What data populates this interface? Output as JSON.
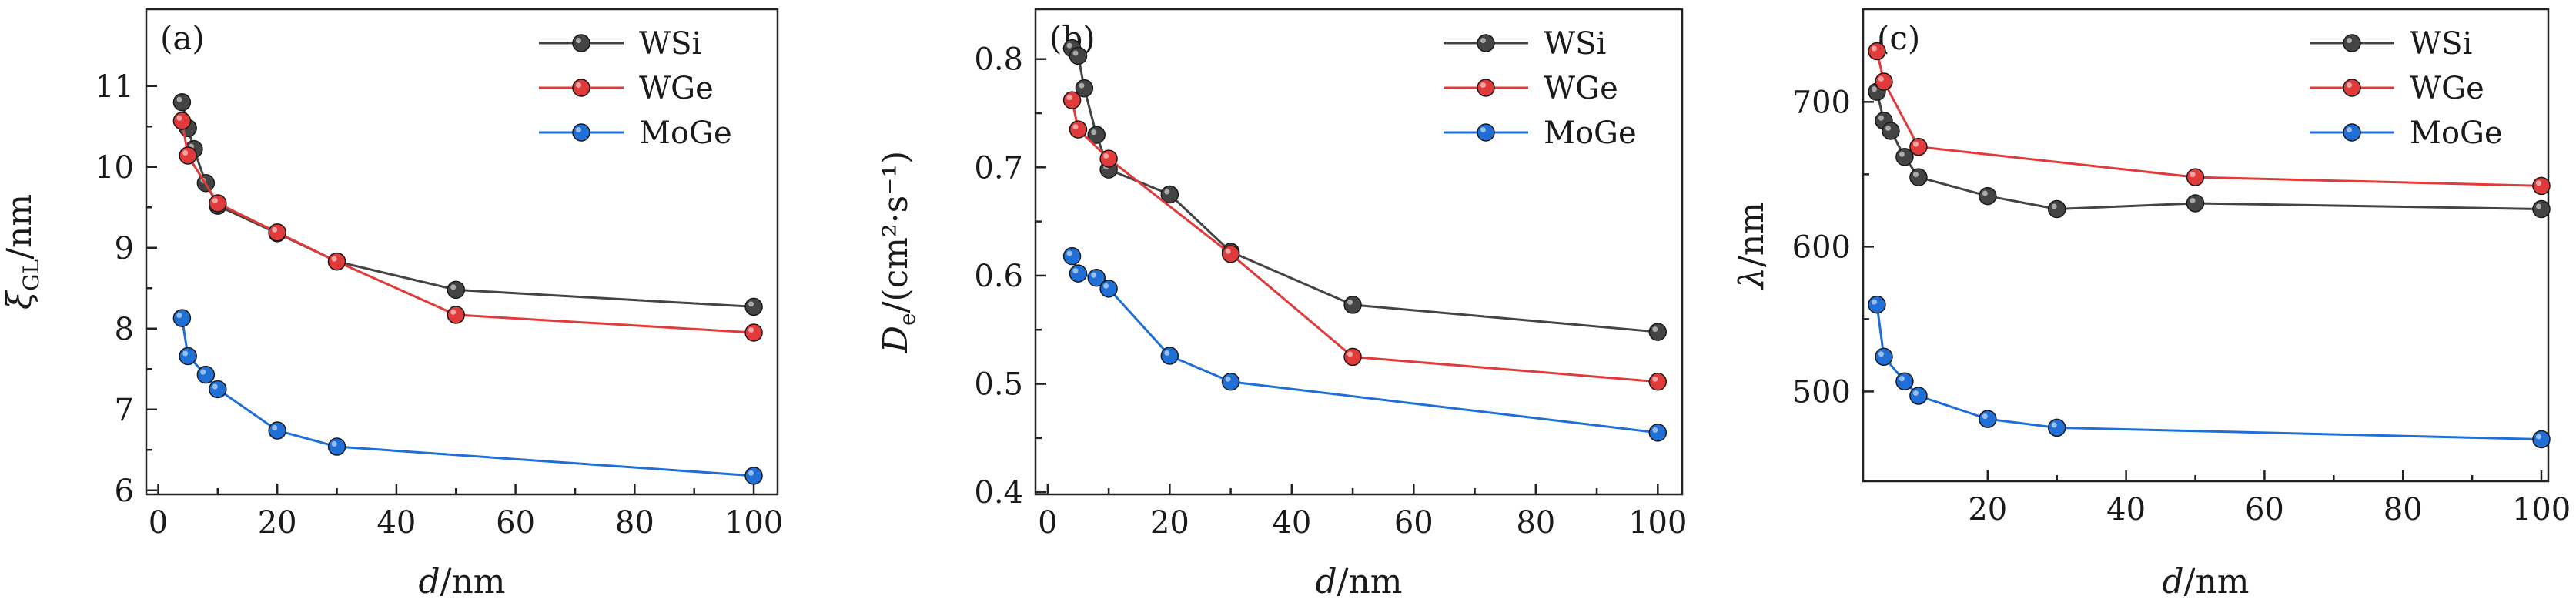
{
  "figure": {
    "colors": {
      "WSi": "#444444",
      "WGe": "#e03a3a",
      "MoGe": "#1f6fd6"
    },
    "icon": "marker-circle-icon"
  },
  "chart_data": [
    {
      "type": "line",
      "panel_label": "(a)",
      "xlabel_var": "d",
      "xlabel_unit": "/nm",
      "ylabel_var": "ξ",
      "ylabel_sub": "GL",
      "ylabel_unit": "/nm",
      "xlim": [
        -2,
        104
      ],
      "ylim": [
        5.95,
        11.95
      ],
      "xticks": [
        0,
        20,
        40,
        60,
        80,
        100
      ],
      "yticks": [
        6,
        7,
        8,
        9,
        10,
        11
      ],
      "series": [
        {
          "name": "WSi",
          "x": [
            4,
            5,
            6,
            8,
            10,
            20,
            30,
            50,
            100
          ],
          "y": [
            10.8,
            10.48,
            10.22,
            9.8,
            9.52,
            9.18,
            8.83,
            8.48,
            8.27
          ]
        },
        {
          "name": "WGe",
          "x": [
            4,
            5,
            10,
            20,
            30,
            50,
            100
          ],
          "y": [
            10.57,
            10.14,
            9.55,
            9.19,
            8.83,
            8.17,
            7.95
          ]
        },
        {
          "name": "MoGe",
          "x": [
            4,
            5,
            8,
            10,
            20,
            30,
            100
          ],
          "y": [
            8.13,
            7.66,
            7.43,
            7.25,
            6.74,
            6.54,
            6.18
          ]
        }
      ]
    },
    {
      "type": "line",
      "panel_label": "(b)",
      "xlabel_var": "d",
      "xlabel_unit": "/nm",
      "ylabel_var": "D",
      "ylabel_sub": "e",
      "ylabel_unit": "/(cm²·s⁻¹)",
      "xlim": [
        -2,
        104
      ],
      "ylim": [
        0.398,
        0.846
      ],
      "xticks": [
        0,
        20,
        40,
        60,
        80,
        100
      ],
      "yticks": [
        0.4,
        0.5,
        0.6,
        0.7,
        0.8
      ],
      "series": [
        {
          "name": "WSi",
          "x": [
            4,
            5,
            6,
            8,
            10,
            20,
            30,
            50,
            100
          ],
          "y": [
            0.81,
            0.803,
            0.773,
            0.73,
            0.698,
            0.675,
            0.622,
            0.573,
            0.548
          ]
        },
        {
          "name": "WGe",
          "x": [
            4,
            5,
            10,
            30,
            50,
            100
          ],
          "y": [
            0.762,
            0.735,
            0.708,
            0.62,
            0.525,
            0.502
          ]
        },
        {
          "name": "MoGe",
          "x": [
            4,
            5,
            8,
            10,
            20,
            30,
            100
          ],
          "y": [
            0.618,
            0.602,
            0.598,
            0.588,
            0.526,
            0.502,
            0.455
          ]
        }
      ]
    },
    {
      "type": "line",
      "panel_label": "(c)",
      "xlabel_var": "d",
      "xlabel_unit": "/nm",
      "ylabel_var": "λ",
      "ylabel_sub": "",
      "ylabel_unit": "/nm",
      "xlim": [
        2,
        101
      ],
      "ylim": [
        438,
        764
      ],
      "xticks": [
        20,
        40,
        60,
        80,
        100
      ],
      "yticks": [
        500,
        600,
        700
      ],
      "series": [
        {
          "name": "WSi",
          "x": [
            4,
            5,
            6,
            8,
            10,
            20,
            30,
            50,
            100
          ],
          "y": [
            707,
            687,
            680,
            662,
            648,
            635,
            626,
            630,
            626
          ]
        },
        {
          "name": "WGe",
          "x": [
            4,
            5,
            10,
            50,
            100
          ],
          "y": [
            735,
            714,
            669,
            648,
            642
          ]
        },
        {
          "name": "MoGe",
          "x": [
            4,
            5,
            8,
            10,
            20,
            30,
            100
          ],
          "y": [
            560,
            524,
            507,
            497,
            481,
            475,
            467
          ]
        }
      ]
    }
  ]
}
